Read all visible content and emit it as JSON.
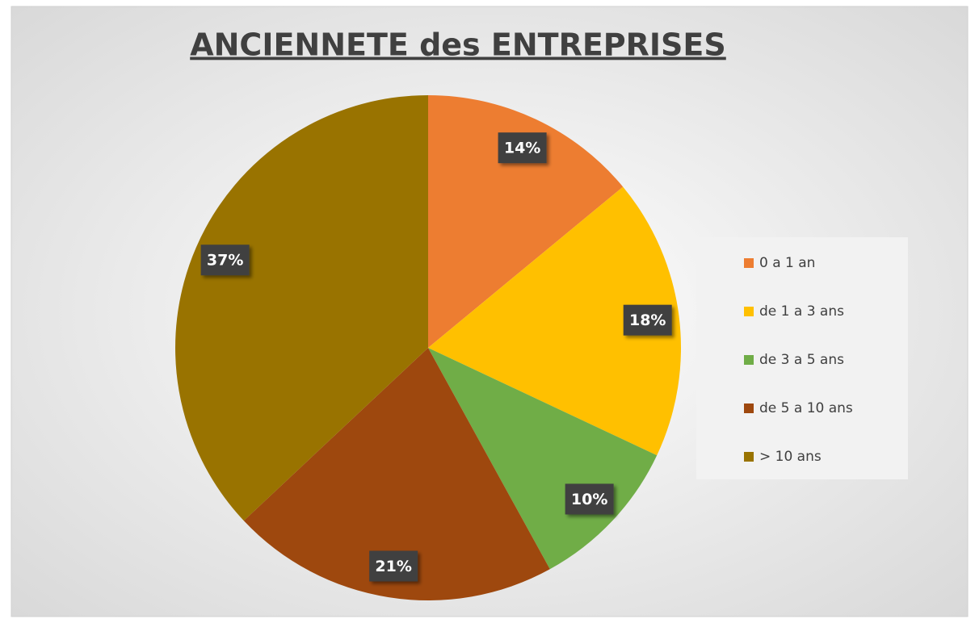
{
  "chart_data": {
    "type": "pie",
    "title": "ANCIENNETE des ENTREPRISES",
    "categories": [
      "0 a 1 an",
      "de 1 a 3 ans",
      "de 3 a 5 ans",
      "de 5 a 10 ans",
      "> 10 ans"
    ],
    "values": [
      14,
      18,
      10,
      21,
      37
    ],
    "value_labels": [
      "14%",
      "18%",
      "10%",
      "21%",
      "37%"
    ],
    "colors": [
      "#ed7d31",
      "#ffc000",
      "#70ad47",
      "#9e480e",
      "#997300"
    ],
    "legend": "right"
  }
}
